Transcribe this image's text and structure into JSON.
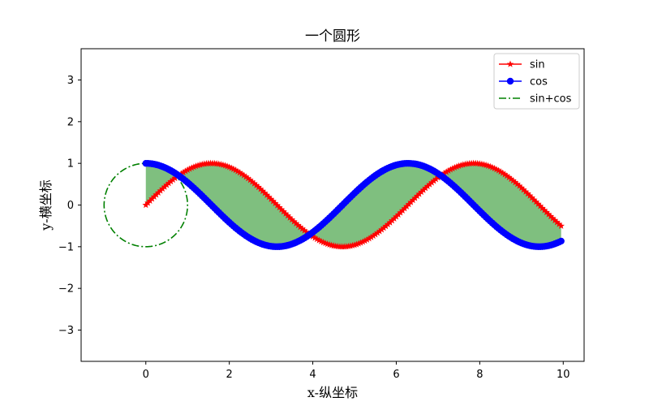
{
  "chart_data": {
    "type": "line",
    "title": "一个圆形",
    "xlabel": "x-纵坐标",
    "ylabel": "y-横坐标",
    "xlim": [
      -1.55,
      10.5
    ],
    "ylim": [
      -3.75,
      3.75
    ],
    "xticks": [
      0,
      2,
      4,
      6,
      8,
      10
    ],
    "yticks": [
      -3,
      -2,
      -1,
      0,
      1,
      2,
      3
    ],
    "x_domain": [
      0,
      9.95
    ],
    "sample_step": 0.05,
    "grid": false,
    "legend_position": "top-right",
    "series": [
      {
        "name": "sin",
        "function": "sin(x)",
        "color": "#ff0000",
        "marker": "star",
        "linestyle": "solid"
      },
      {
        "name": "cos",
        "function": "cos(x)",
        "color": "#0000ff",
        "marker": "circle",
        "linestyle": "solid"
      },
      {
        "name": "sin+cos",
        "function": "circle: (sin t, cos t)",
        "color": "#008000",
        "marker": "none",
        "linestyle": "dashdot"
      }
    ],
    "fill_between": {
      "series": [
        "sin",
        "cos"
      ],
      "color": "#008000",
      "alpha": 0.5
    }
  }
}
